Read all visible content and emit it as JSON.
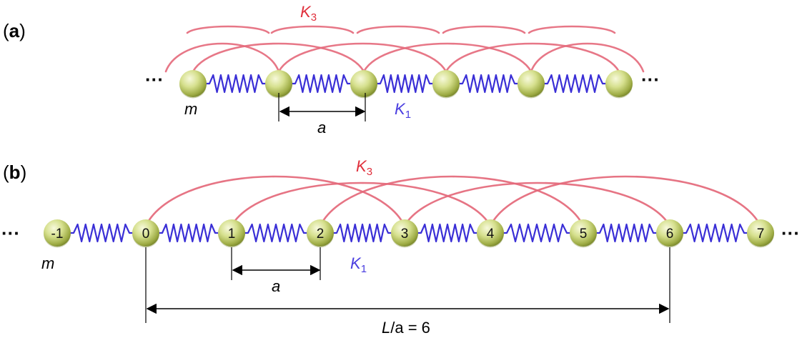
{
  "panel_a": {
    "letter": "a",
    "k3_label": "K",
    "k3_sub": "3",
    "k1_label": "K",
    "k1_sub": "1",
    "mass_label": "m",
    "spacing_label": "a",
    "ellipsis_left": "···",
    "ellipsis_right": "···"
  },
  "panel_b": {
    "letter": "b",
    "k3_label": "K",
    "k3_sub": "3",
    "k1_label": "K",
    "k1_sub": "1",
    "mass_label": "m",
    "spacing_label": "a",
    "period_label_L": "L",
    "period_label_rest": "/a = 6",
    "ellipsis_left": "···",
    "ellipsis_right": "···",
    "node_labels": [
      "-1",
      "0",
      "1",
      "2",
      "3",
      "4",
      "5",
      "6",
      "7"
    ]
  },
  "colors": {
    "k1_spring": "#3a2fd6",
    "k3_arc": "#e4687a",
    "k1_text": "#4a3ee0",
    "k3_text": "#e0303c",
    "ball_light": "#f4f7cf",
    "ball_mid": "#c9d77a",
    "ball_dark": "#7d8e2c"
  }
}
